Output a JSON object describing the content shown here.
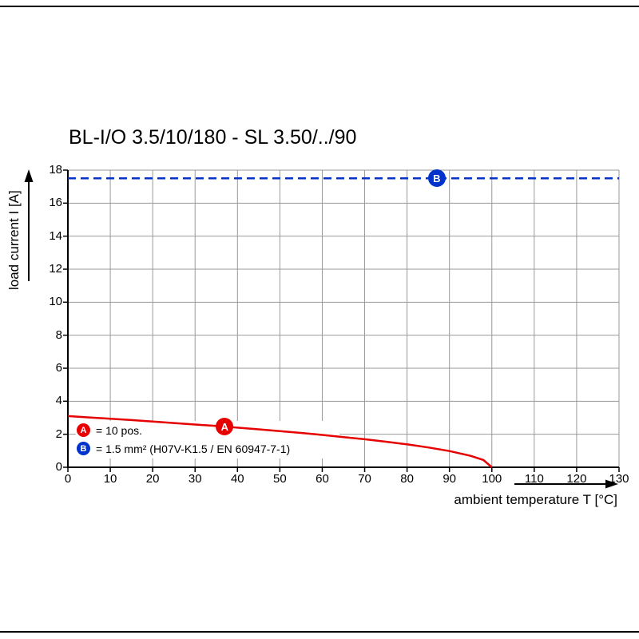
{
  "chart_data": {
    "type": "line",
    "title": "BL-I/O 3.5/10/180 - SL 3.50/../90",
    "xlabel": "ambient temperature T [°C]",
    "ylabel": "load current I [A]",
    "xlim": [
      0,
      130
    ],
    "ylim": [
      0,
      18
    ],
    "xticks": [
      0,
      10,
      20,
      30,
      40,
      50,
      60,
      70,
      80,
      90,
      100,
      110,
      120,
      130
    ],
    "yticks": [
      0,
      2,
      4,
      6,
      8,
      10,
      12,
      14,
      16,
      18
    ],
    "grid": true,
    "grid_color": "#999999",
    "axis_color": "#000000",
    "series": [
      {
        "name": "A",
        "color": "#e60000",
        "style": "solid",
        "marker": {
          "x": 37,
          "y": 2.46,
          "label": "A"
        },
        "points": [
          [
            0,
            3.1
          ],
          [
            5,
            3.02
          ],
          [
            10,
            2.94
          ],
          [
            15,
            2.86
          ],
          [
            20,
            2.77
          ],
          [
            25,
            2.68
          ],
          [
            30,
            2.59
          ],
          [
            35,
            2.5
          ],
          [
            40,
            2.4
          ],
          [
            45,
            2.3
          ],
          [
            50,
            2.19
          ],
          [
            55,
            2.08
          ],
          [
            60,
            1.96
          ],
          [
            65,
            1.83
          ],
          [
            70,
            1.7
          ],
          [
            75,
            1.55
          ],
          [
            80,
            1.39
          ],
          [
            85,
            1.2
          ],
          [
            90,
            0.98
          ],
          [
            95,
            0.69
          ],
          [
            98,
            0.44
          ],
          [
            100,
            0
          ]
        ]
      },
      {
        "name": "B",
        "color": "#0033cc",
        "style": "dashed",
        "marker": {
          "x": 87,
          "y": 17.5,
          "label": "B"
        },
        "points": [
          [
            0,
            17.5
          ],
          [
            130,
            17.5
          ]
        ]
      }
    ],
    "legend": {
      "position": "inside-bottom-left",
      "items": [
        {
          "marker": "A",
          "color": "#e60000",
          "text": "= 10 pos."
        },
        {
          "marker": "B",
          "color": "#0033cc",
          "text": "= 1.5 mm² (H07V-K1.5 / EN 60947-7-1)"
        }
      ]
    }
  }
}
